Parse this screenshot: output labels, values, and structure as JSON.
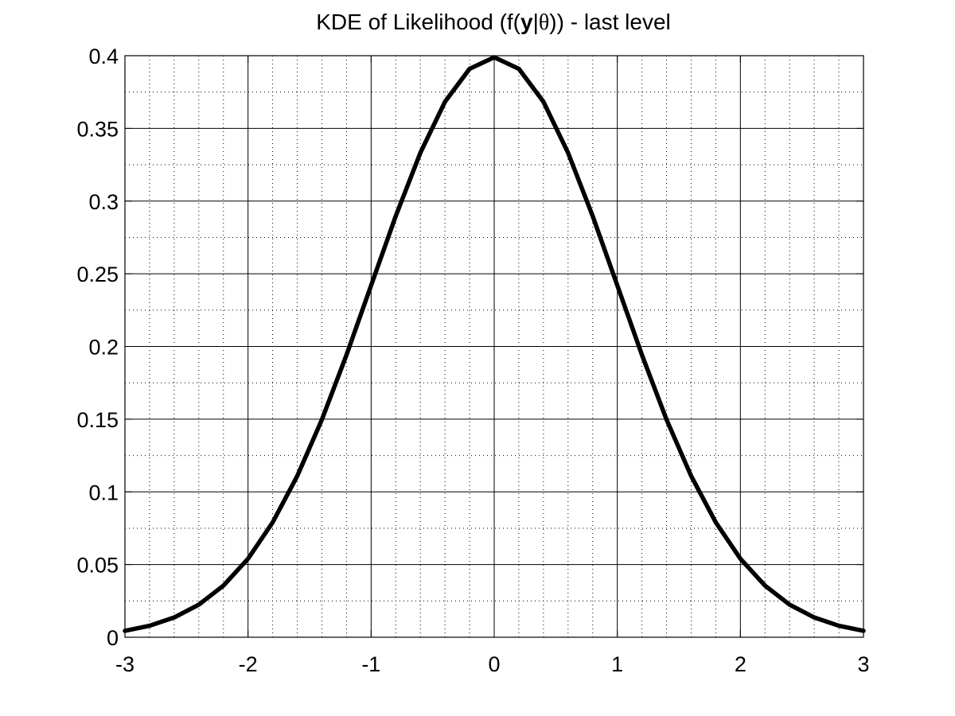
{
  "chart_data": {
    "type": "line",
    "title_parts": [
      {
        "text": "KDE of Likelihood (f(",
        "style": "normal"
      },
      {
        "text": "y",
        "style": "bold"
      },
      {
        "text": "|",
        "style": "normal"
      },
      {
        "text": "θ",
        "style": "serif"
      },
      {
        "text": ")) - last level",
        "style": "normal"
      }
    ],
    "xlabel": "",
    "ylabel": "",
    "xlim": [
      -3,
      3
    ],
    "ylim": [
      0,
      0.4
    ],
    "x_ticks": [
      -3,
      -2,
      -1,
      0,
      1,
      2,
      3
    ],
    "x_tick_labels": [
      "-3",
      "-2",
      "-1",
      "0",
      "1",
      "2",
      "3"
    ],
    "y_ticks": [
      0,
      0.05,
      0.1,
      0.15,
      0.2,
      0.25,
      0.3,
      0.35,
      0.4
    ],
    "y_tick_labels": [
      "0",
      "0.05",
      "0.1",
      "0.15",
      "0.2",
      "0.25",
      "0.3",
      "0.35",
      "0.4"
    ],
    "grid": "major solid, minor dotted",
    "legend": "none",
    "series": [
      {
        "color": "#000000",
        "x": [
          -3.0,
          -2.8,
          -2.6,
          -2.4,
          -2.2,
          -2.0,
          -1.8,
          -1.6,
          -1.4,
          -1.2,
          -1.0,
          -0.8,
          -0.6,
          -0.4,
          -0.2,
          0.0,
          0.2,
          0.4,
          0.6,
          0.8,
          1.0,
          1.2,
          1.4,
          1.6,
          1.8,
          2.0,
          2.2,
          2.4,
          2.6,
          2.8,
          3.0
        ],
        "y": [
          0.0044,
          0.0079,
          0.0136,
          0.0224,
          0.0355,
          0.054,
          0.079,
          0.1109,
          0.1497,
          0.1942,
          0.242,
          0.2897,
          0.3332,
          0.3683,
          0.391,
          0.3989,
          0.391,
          0.3683,
          0.3332,
          0.2897,
          0.242,
          0.1942,
          0.1497,
          0.1109,
          0.079,
          0.054,
          0.0355,
          0.0224,
          0.0136,
          0.0079,
          0.0044
        ]
      }
    ]
  }
}
